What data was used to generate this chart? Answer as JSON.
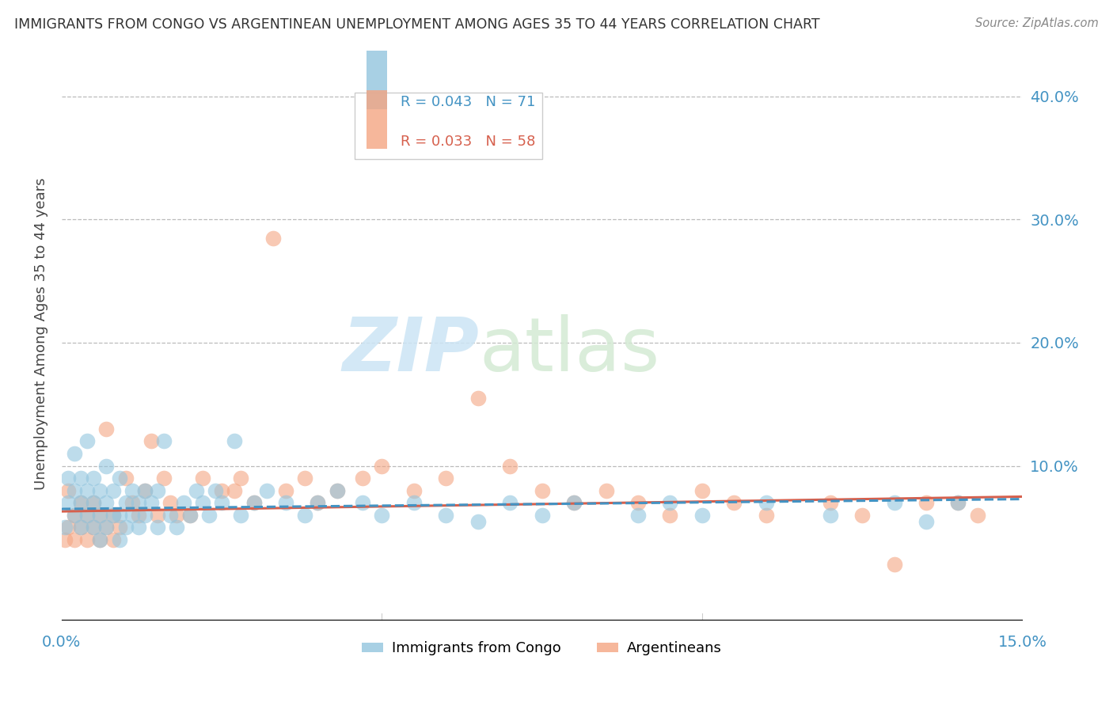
{
  "title": "IMMIGRANTS FROM CONGO VS ARGENTINEAN UNEMPLOYMENT AMONG AGES 35 TO 44 YEARS CORRELATION CHART",
  "source": "Source: ZipAtlas.com",
  "ylabel": "Unemployment Among Ages 35 to 44 years",
  "yaxis_labels": [
    "40.0%",
    "30.0%",
    "20.0%",
    "10.0%"
  ],
  "yaxis_values": [
    0.4,
    0.3,
    0.2,
    0.1
  ],
  "xlim": [
    0.0,
    0.15
  ],
  "ylim": [
    -0.025,
    0.44
  ],
  "blue_color": "#92c5de",
  "blue_dark": "#4393c3",
  "pink_color": "#f4a582",
  "pink_dark": "#d6604d",
  "legend_blue_r": "R = 0.043",
  "legend_blue_n": "N = 71",
  "legend_pink_r": "R = 0.033",
  "legend_pink_n": "N = 58",
  "blue_x": [
    0.0005,
    0.001,
    0.001,
    0.002,
    0.002,
    0.002,
    0.003,
    0.003,
    0.003,
    0.004,
    0.004,
    0.004,
    0.005,
    0.005,
    0.005,
    0.006,
    0.006,
    0.006,
    0.007,
    0.007,
    0.007,
    0.008,
    0.008,
    0.009,
    0.009,
    0.009,
    0.01,
    0.01,
    0.011,
    0.011,
    0.012,
    0.012,
    0.013,
    0.013,
    0.014,
    0.015,
    0.015,
    0.016,
    0.017,
    0.018,
    0.019,
    0.02,
    0.021,
    0.022,
    0.023,
    0.024,
    0.025,
    0.027,
    0.028,
    0.03,
    0.032,
    0.035,
    0.038,
    0.04,
    0.043,
    0.047,
    0.05,
    0.055,
    0.06,
    0.065,
    0.07,
    0.075,
    0.08,
    0.09,
    0.095,
    0.1,
    0.11,
    0.12,
    0.13,
    0.135,
    0.14
  ],
  "blue_y": [
    0.05,
    0.07,
    0.09,
    0.06,
    0.08,
    0.11,
    0.05,
    0.07,
    0.09,
    0.06,
    0.08,
    0.12,
    0.05,
    0.07,
    0.09,
    0.04,
    0.06,
    0.08,
    0.05,
    0.07,
    0.1,
    0.06,
    0.08,
    0.04,
    0.06,
    0.09,
    0.05,
    0.07,
    0.06,
    0.08,
    0.05,
    0.07,
    0.06,
    0.08,
    0.07,
    0.05,
    0.08,
    0.12,
    0.06,
    0.05,
    0.07,
    0.06,
    0.08,
    0.07,
    0.06,
    0.08,
    0.07,
    0.12,
    0.06,
    0.07,
    0.08,
    0.07,
    0.06,
    0.07,
    0.08,
    0.07,
    0.06,
    0.07,
    0.06,
    0.055,
    0.07,
    0.06,
    0.07,
    0.06,
    0.07,
    0.06,
    0.07,
    0.06,
    0.07,
    0.055,
    0.07
  ],
  "pink_x": [
    0.0005,
    0.001,
    0.001,
    0.002,
    0.002,
    0.003,
    0.003,
    0.004,
    0.004,
    0.005,
    0.005,
    0.006,
    0.006,
    0.007,
    0.007,
    0.008,
    0.008,
    0.009,
    0.01,
    0.011,
    0.012,
    0.013,
    0.014,
    0.015,
    0.016,
    0.017,
    0.018,
    0.02,
    0.022,
    0.025,
    0.027,
    0.028,
    0.03,
    0.033,
    0.035,
    0.038,
    0.04,
    0.043,
    0.047,
    0.05,
    0.055,
    0.06,
    0.065,
    0.07,
    0.075,
    0.08,
    0.085,
    0.09,
    0.095,
    0.1,
    0.105,
    0.11,
    0.12,
    0.125,
    0.13,
    0.135,
    0.14,
    0.143
  ],
  "pink_y": [
    0.04,
    0.05,
    0.08,
    0.04,
    0.06,
    0.05,
    0.07,
    0.04,
    0.06,
    0.05,
    0.07,
    0.04,
    0.06,
    0.05,
    0.13,
    0.04,
    0.06,
    0.05,
    0.09,
    0.07,
    0.06,
    0.08,
    0.12,
    0.06,
    0.09,
    0.07,
    0.06,
    0.06,
    0.09,
    0.08,
    0.08,
    0.09,
    0.07,
    0.285,
    0.08,
    0.09,
    0.07,
    0.08,
    0.09,
    0.1,
    0.08,
    0.09,
    0.155,
    0.1,
    0.08,
    0.07,
    0.08,
    0.07,
    0.06,
    0.08,
    0.07,
    0.06,
    0.07,
    0.06,
    0.02,
    0.07,
    0.07,
    0.06
  ],
  "trend_blue_start": 0.065,
  "trend_blue_end": 0.073,
  "trend_pink_start": 0.063,
  "trend_pink_end": 0.075
}
